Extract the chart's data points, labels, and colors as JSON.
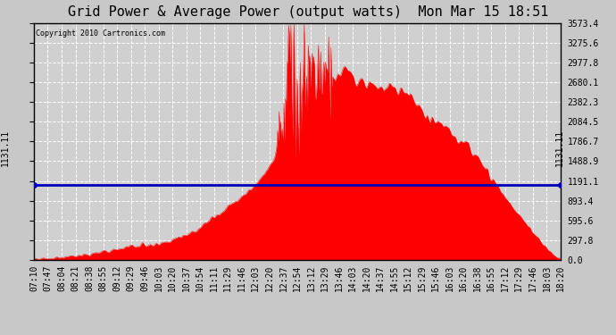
{
  "title": "Grid Power & Average Power (output watts)  Mon Mar 15 18:51",
  "copyright": "Copyright 2010 Cartronics.com",
  "avg_power": 1131.11,
  "y_max": 3573.4,
  "y_min": 0.0,
  "yticks": [
    0.0,
    297.8,
    595.6,
    893.4,
    1191.1,
    1488.9,
    1786.7,
    2084.5,
    2382.3,
    2680.1,
    2977.8,
    3275.6,
    3573.4
  ],
  "xtick_labels": [
    "07:10",
    "07:47",
    "08:04",
    "08:21",
    "08:38",
    "08:55",
    "09:12",
    "09:29",
    "09:46",
    "10:03",
    "10:20",
    "10:37",
    "10:54",
    "11:11",
    "11:29",
    "11:46",
    "12:03",
    "12:20",
    "12:37",
    "12:54",
    "13:12",
    "13:29",
    "13:46",
    "14:03",
    "14:20",
    "14:37",
    "14:55",
    "15:12",
    "15:29",
    "15:46",
    "16:03",
    "16:20",
    "16:38",
    "16:55",
    "17:12",
    "17:29",
    "17:46",
    "18:03",
    "18:20"
  ],
  "fill_color": "#FF0000",
  "avg_line_color": "#0000BB",
  "background_color": "#C8C8C8",
  "plot_bg_color": "#D0D0D0",
  "title_fontsize": 11,
  "tick_fontsize": 7,
  "grid_color": "#FFFFFF",
  "border_color": "#000000"
}
